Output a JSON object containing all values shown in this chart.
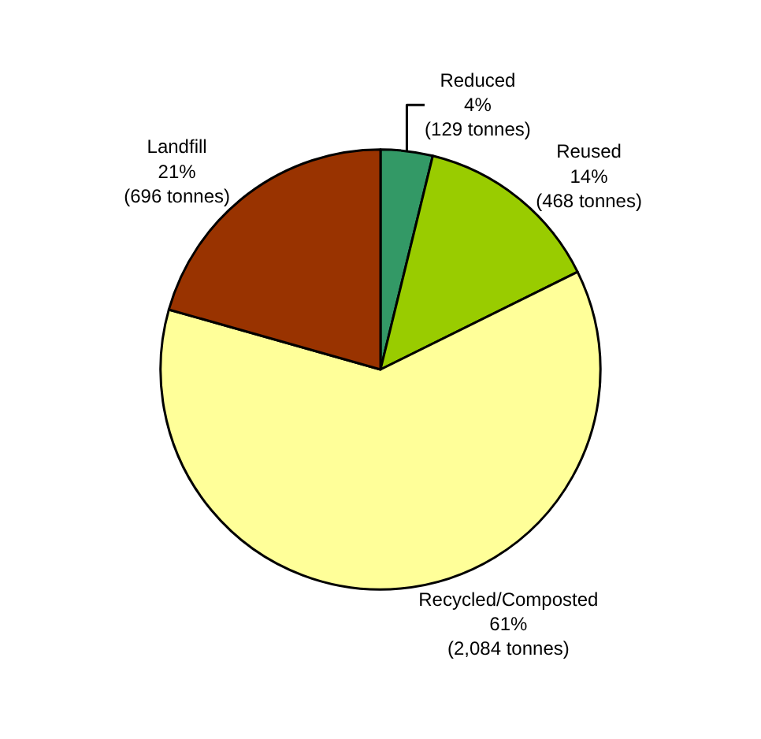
{
  "chart_data": {
    "type": "pie",
    "categories": [
      "Reduced",
      "Reused",
      "Recycled/Composted",
      "Landfill"
    ],
    "values": [
      129,
      468,
      2084,
      696
    ],
    "colors": [
      "#339966",
      "#99cc00",
      "#ffff99",
      "#993300"
    ],
    "value_labels": [
      "4%\n(129 tonnes)",
      "14%\n(468 tonnes)",
      "61%\n(2,084 tonnes)",
      "21%\n(696 tonnes)"
    ],
    "legend": false
  }
}
